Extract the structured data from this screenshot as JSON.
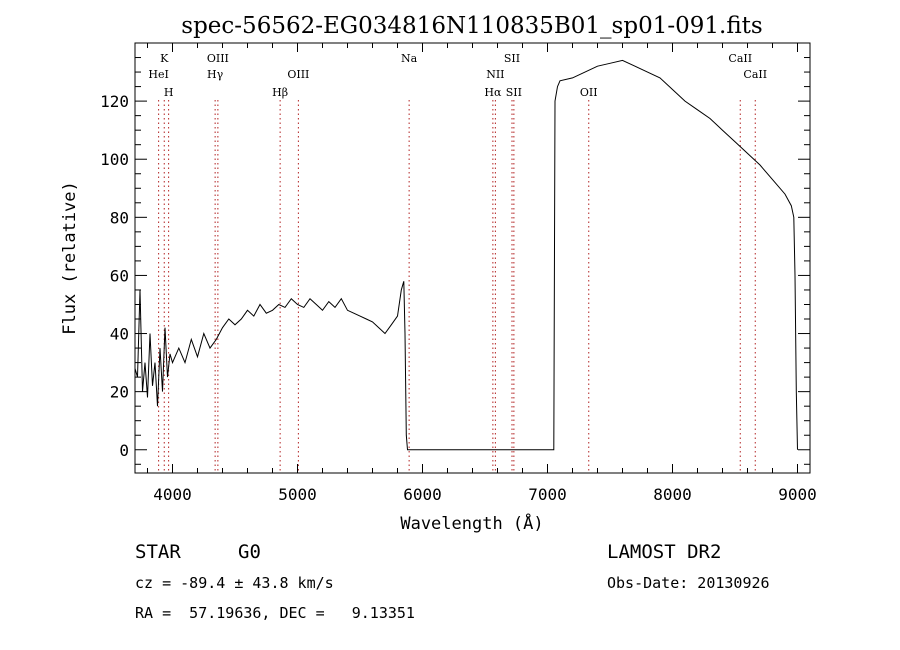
{
  "chart_data": {
    "type": "line",
    "title": "spec-56562-EG034816N110835B01_sp01-091.fits",
    "xlabel": "Wavelength (Å)",
    "ylabel": "Flux (relative)",
    "xlim": [
      3700,
      9100
    ],
    "ylim": [
      -8,
      140
    ],
    "x_ticks": [
      4000,
      5000,
      6000,
      7000,
      8000,
      9000
    ],
    "y_ticks": [
      0,
      20,
      40,
      60,
      80,
      100,
      120
    ],
    "grid": false,
    "series": [
      {
        "x": [
          3700,
          3720,
          3740,
          3760,
          3780,
          3800,
          3820,
          3840,
          3860,
          3880,
          3900,
          3920,
          3940,
          3960,
          3980,
          4000,
          4050,
          4100,
          4150,
          4200,
          4250,
          4300,
          4350,
          4400,
          4450,
          4500,
          4550,
          4600,
          4650,
          4700,
          4750,
          4800,
          4850,
          4900,
          4950,
          5000,
          5050,
          5100,
          5150,
          5200,
          5250,
          5300,
          5350,
          5400,
          5450,
          5500,
          5550,
          5600,
          5650,
          5700,
          5750,
          5800,
          5830,
          5850,
          5860,
          5870,
          5880,
          5900,
          6000,
          6500,
          7000,
          7050,
          7060,
          7080,
          7100,
          7200,
          7300,
          7400,
          7500,
          7600,
          7700,
          7800,
          7900,
          8000,
          8100,
          8200,
          8300,
          8400,
          8500,
          8600,
          8700,
          8800,
          8900,
          8950,
          8970,
          8980,
          8990,
          9000
        ],
        "y": [
          28,
          25,
          55,
          20,
          30,
          18,
          40,
          22,
          30,
          15,
          35,
          20,
          42,
          25,
          33,
          30,
          35,
          30,
          38,
          32,
          40,
          35,
          38,
          42,
          45,
          43,
          45,
          48,
          46,
          50,
          47,
          48,
          50,
          49,
          52,
          50,
          49,
          52,
          50,
          48,
          51,
          49,
          52,
          48,
          47,
          46,
          45,
          44,
          42,
          40,
          43,
          46,
          55,
          58,
          40,
          5,
          0,
          0,
          0,
          0,
          0,
          0,
          120,
          125,
          127,
          128,
          130,
          132,
          133,
          134,
          132,
          130,
          128,
          124,
          120,
          117,
          114,
          110,
          106,
          102,
          98,
          93,
          88,
          84,
          80,
          60,
          20,
          0
        ]
      }
    ],
    "annotations": [
      {
        "label": "K",
        "x": 3934
      },
      {
        "label": "HeI",
        "x": 3889
      },
      {
        "label": "H",
        "x": 3969
      },
      {
        "label": "OIII",
        "x": 4363
      },
      {
        "label": "Hγ",
        "x": 4341
      },
      {
        "label": "Hβ",
        "x": 4861
      },
      {
        "label": "OIII",
        "x": 5007
      },
      {
        "label": "Na",
        "x": 5893
      },
      {
        "label": "NII",
        "x": 6583
      },
      {
        "label": "Hα",
        "x": 6563
      },
      {
        "label": "SII",
        "x": 6716
      },
      {
        "label": "SII",
        "x": 6731
      },
      {
        "label": "OII",
        "x": 7330
      },
      {
        "label": "CaII",
        "x": 8542
      },
      {
        "label": "CaII",
        "x": 8662
      }
    ]
  },
  "info": {
    "object_class": "STAR",
    "subclass": "G0",
    "survey": "LAMOST DR2",
    "cz": "cz = -89.4 ± 43.8 km/s",
    "obs_date": "Obs-Date: 20130926",
    "radec": "RA =  57.19636, DEC =   9.13351"
  }
}
